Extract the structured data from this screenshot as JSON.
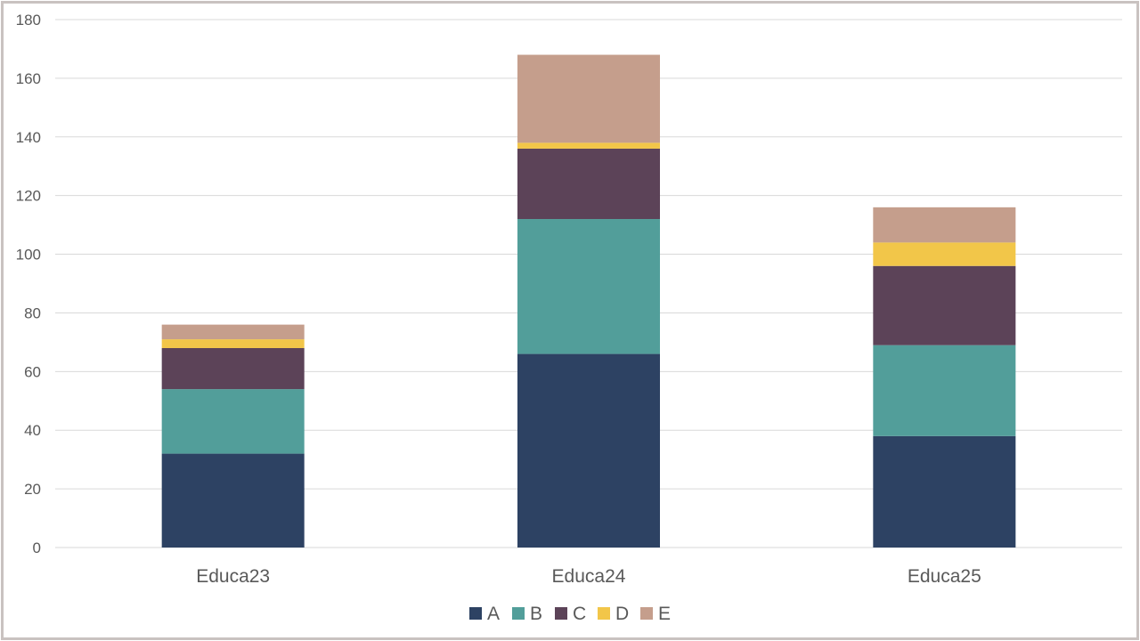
{
  "chart_data": {
    "type": "bar",
    "stacked": true,
    "categories": [
      "Educa23",
      "Educa24",
      "Educa25"
    ],
    "series": [
      {
        "name": "A",
        "color": "#2d4263",
        "values": [
          32,
          66,
          38
        ]
      },
      {
        "name": "B",
        "color": "#529e9a",
        "values": [
          22,
          46,
          31
        ]
      },
      {
        "name": "C",
        "color": "#5c4358",
        "values": [
          14,
          24,
          27
        ]
      },
      {
        "name": "D",
        "color": "#f2c649",
        "values": [
          3,
          2,
          8
        ]
      },
      {
        "name": "E",
        "color": "#c59e8c",
        "values": [
          5,
          30,
          12
        ]
      }
    ],
    "yticks": [
      "0",
      "20",
      "40",
      "60",
      "80",
      "100",
      "120",
      "140",
      "160",
      "180"
    ],
    "ylim": [
      0,
      180
    ],
    "grid": true,
    "legend": "bottom",
    "title": "",
    "xlabel": "",
    "ylabel": ""
  }
}
